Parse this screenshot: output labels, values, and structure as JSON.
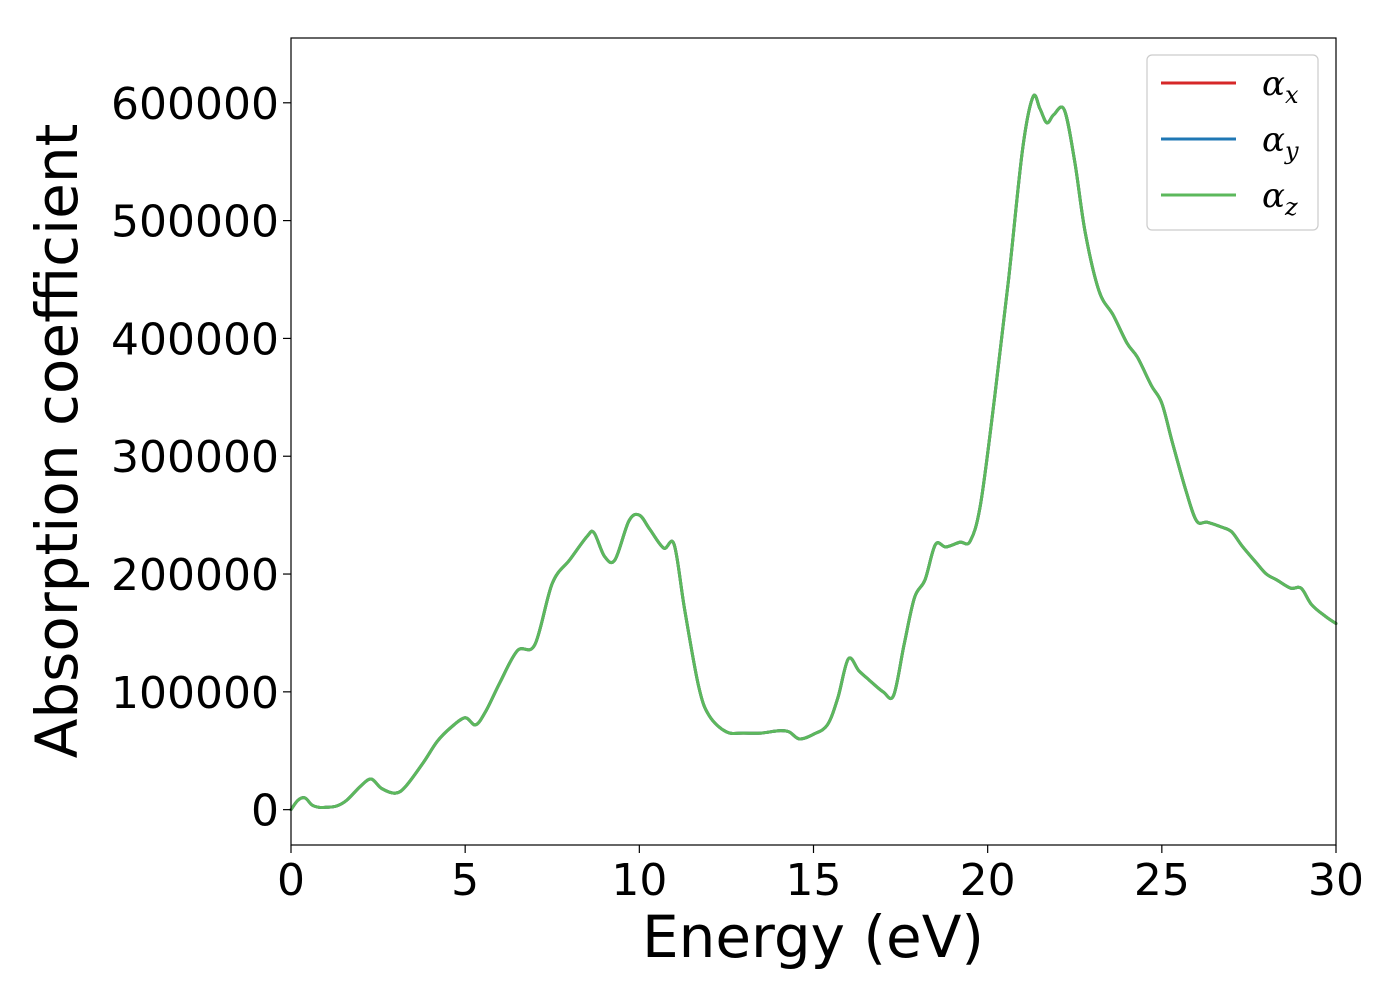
{
  "chart_data": {
    "type": "line",
    "xlabel": "Energy (eV)",
    "ylabel": "Absorption coefficient",
    "xlim": [
      0,
      30
    ],
    "ylim": [
      -30000,
      655000
    ],
    "xticks": [
      0,
      5,
      10,
      15,
      20,
      25,
      30
    ],
    "yticks": [
      0,
      100000,
      200000,
      300000,
      400000,
      500000,
      600000
    ],
    "grid": false,
    "legend_position": "top-right",
    "series": [
      {
        "name": "α_x",
        "symbol": "α",
        "subscript": "x",
        "color": "#d62728",
        "x": [
          0.0,
          0.2,
          0.4,
          0.6,
          0.8,
          1.0,
          1.3,
          1.6,
          2.0,
          2.3,
          2.6,
          3.0,
          3.3,
          3.8,
          4.2,
          4.6,
          5.0,
          5.3,
          5.6,
          6.0,
          6.5,
          7.0,
          7.5,
          8.0,
          8.5,
          8.7,
          9.0,
          9.3,
          9.7,
          10.0,
          10.3,
          10.7,
          11.0,
          11.3,
          11.7,
          12.0,
          12.5,
          13.0,
          13.5,
          14.0,
          14.3,
          14.6,
          15.0,
          15.4,
          15.7,
          16.0,
          16.3,
          16.6,
          17.0,
          17.3,
          17.6,
          17.9,
          18.2,
          18.5,
          18.8,
          19.2,
          19.5,
          19.8,
          20.2,
          20.6,
          21.0,
          21.3,
          21.5,
          21.7,
          21.9,
          22.2,
          22.5,
          22.8,
          23.2,
          23.6,
          24.0,
          24.3,
          24.7,
          25.0,
          25.3,
          25.7,
          26.0,
          26.3,
          26.7,
          27.0,
          27.3,
          27.7,
          28.0,
          28.3,
          28.7,
          29.0,
          29.3,
          29.7,
          30.0
        ],
        "values": [
          0,
          8000,
          10000,
          4000,
          2000,
          2000,
          3000,
          8000,
          20000,
          26000,
          18000,
          14000,
          20000,
          40000,
          58000,
          70000,
          78000,
          72000,
          84000,
          108000,
          135000,
          140000,
          192000,
          212000,
          232000,
          235000,
          215000,
          212000,
          245000,
          250000,
          238000,
          222000,
          225000,
          170000,
          105000,
          80000,
          66000,
          65000,
          65000,
          67000,
          66000,
          60000,
          64000,
          72000,
          95000,
          128000,
          118000,
          110000,
          100000,
          97000,
          140000,
          180000,
          195000,
          225000,
          223000,
          227000,
          228000,
          260000,
          350000,
          450000,
          560000,
          605000,
          595000,
          583000,
          590000,
          594000,
          550000,
          490000,
          440000,
          420000,
          396000,
          384000,
          360000,
          345000,
          312000,
          270000,
          245000,
          244000,
          240000,
          236000,
          224000,
          210000,
          200000,
          195000,
          188000,
          188000,
          174000,
          164000,
          158000
        ]
      },
      {
        "name": "α_y",
        "symbol": "α",
        "subscript": "y",
        "color": "#1f77b4",
        "x": [
          0.0,
          0.2,
          0.4,
          0.6,
          0.8,
          1.0,
          1.3,
          1.6,
          2.0,
          2.3,
          2.6,
          3.0,
          3.3,
          3.8,
          4.2,
          4.6,
          5.0,
          5.3,
          5.6,
          6.0,
          6.5,
          7.0,
          7.5,
          8.0,
          8.5,
          8.7,
          9.0,
          9.3,
          9.7,
          10.0,
          10.3,
          10.7,
          11.0,
          11.3,
          11.7,
          12.0,
          12.5,
          13.0,
          13.5,
          14.0,
          14.3,
          14.6,
          15.0,
          15.4,
          15.7,
          16.0,
          16.3,
          16.6,
          17.0,
          17.3,
          17.6,
          17.9,
          18.2,
          18.5,
          18.8,
          19.2,
          19.5,
          19.8,
          20.2,
          20.6,
          21.0,
          21.3,
          21.5,
          21.7,
          21.9,
          22.2,
          22.5,
          22.8,
          23.2,
          23.6,
          24.0,
          24.3,
          24.7,
          25.0,
          25.3,
          25.7,
          26.0,
          26.3,
          26.7,
          27.0,
          27.3,
          27.7,
          28.0,
          28.3,
          28.7,
          29.0,
          29.3,
          29.7,
          30.0
        ],
        "values": [
          0,
          8000,
          10000,
          4000,
          2000,
          2000,
          3000,
          8000,
          20000,
          26000,
          18000,
          14000,
          20000,
          40000,
          58000,
          70000,
          78000,
          72000,
          84000,
          108000,
          135000,
          140000,
          192000,
          212000,
          232000,
          235000,
          215000,
          212000,
          245000,
          250000,
          238000,
          222000,
          225000,
          170000,
          105000,
          80000,
          66000,
          65000,
          65000,
          67000,
          66000,
          60000,
          64000,
          72000,
          95000,
          128000,
          118000,
          110000,
          100000,
          97000,
          140000,
          180000,
          195000,
          225000,
          223000,
          227000,
          228000,
          260000,
          350000,
          450000,
          560000,
          605000,
          595000,
          583000,
          590000,
          594000,
          550000,
          490000,
          440000,
          420000,
          396000,
          384000,
          360000,
          345000,
          312000,
          270000,
          245000,
          244000,
          240000,
          236000,
          224000,
          210000,
          200000,
          195000,
          188000,
          188000,
          174000,
          164000,
          158000
        ]
      },
      {
        "name": "α_z",
        "symbol": "α",
        "subscript": "z",
        "color": "#5cb85c",
        "x": [
          0.0,
          0.2,
          0.4,
          0.6,
          0.8,
          1.0,
          1.3,
          1.6,
          2.0,
          2.3,
          2.6,
          3.0,
          3.3,
          3.8,
          4.2,
          4.6,
          5.0,
          5.3,
          5.6,
          6.0,
          6.5,
          7.0,
          7.5,
          8.0,
          8.5,
          8.7,
          9.0,
          9.3,
          9.7,
          10.0,
          10.3,
          10.7,
          11.0,
          11.3,
          11.7,
          12.0,
          12.5,
          13.0,
          13.5,
          14.0,
          14.3,
          14.6,
          15.0,
          15.4,
          15.7,
          16.0,
          16.3,
          16.6,
          17.0,
          17.3,
          17.6,
          17.9,
          18.2,
          18.5,
          18.8,
          19.2,
          19.5,
          19.8,
          20.2,
          20.6,
          21.0,
          21.3,
          21.5,
          21.7,
          21.9,
          22.2,
          22.5,
          22.8,
          23.2,
          23.6,
          24.0,
          24.3,
          24.7,
          25.0,
          25.3,
          25.7,
          26.0,
          26.3,
          26.7,
          27.0,
          27.3,
          27.7,
          28.0,
          28.3,
          28.7,
          29.0,
          29.3,
          29.7,
          30.0
        ],
        "values": [
          0,
          8000,
          10000,
          4000,
          2000,
          2000,
          3000,
          8000,
          20000,
          26000,
          18000,
          14000,
          20000,
          40000,
          58000,
          70000,
          78000,
          72000,
          84000,
          108000,
          135000,
          140000,
          192000,
          212000,
          232000,
          235000,
          215000,
          212000,
          245000,
          250000,
          238000,
          222000,
          225000,
          170000,
          105000,
          80000,
          66000,
          65000,
          65000,
          67000,
          66000,
          60000,
          64000,
          72000,
          95000,
          128000,
          118000,
          110000,
          100000,
          97000,
          140000,
          180000,
          195000,
          225000,
          223000,
          227000,
          228000,
          260000,
          350000,
          450000,
          560000,
          605000,
          595000,
          583000,
          590000,
          594000,
          550000,
          490000,
          440000,
          420000,
          396000,
          384000,
          360000,
          345000,
          312000,
          270000,
          245000,
          244000,
          240000,
          236000,
          224000,
          210000,
          200000,
          195000,
          188000,
          188000,
          174000,
          164000,
          158000
        ]
      }
    ]
  }
}
